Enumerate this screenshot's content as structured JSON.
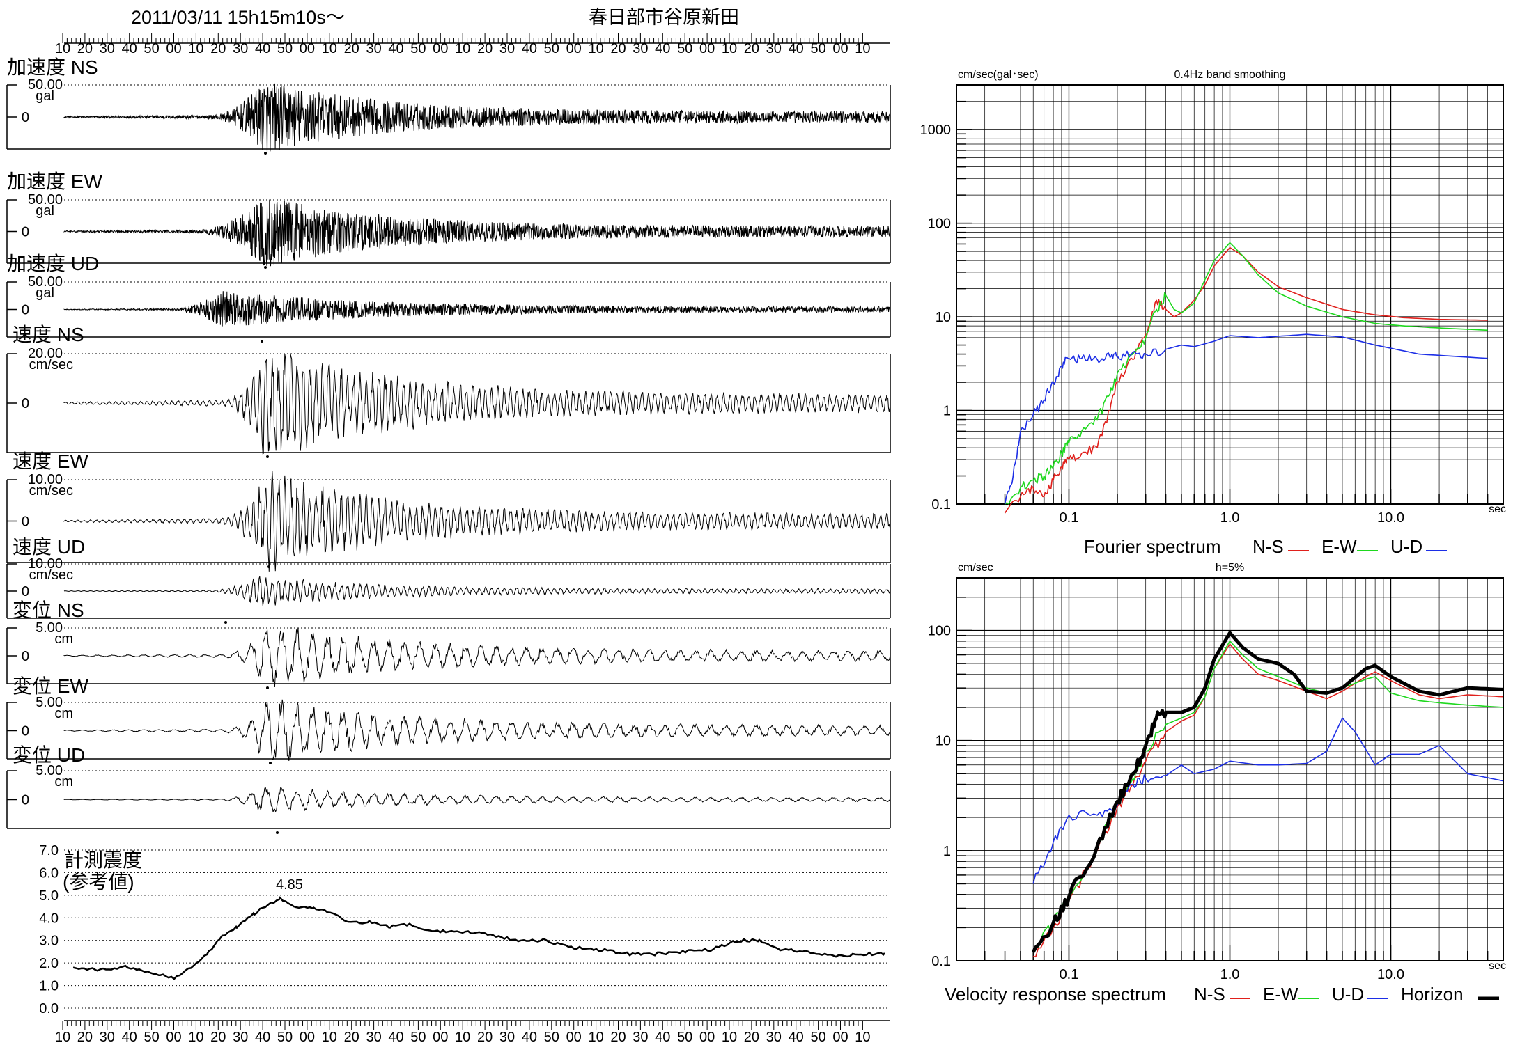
{
  "header": {
    "datetime": "2011/03/11  15h15m10s～",
    "location": "春日部市谷原新田"
  },
  "time_ticks": [
    "10",
    "20",
    "30",
    "40",
    "50",
    "00",
    "10",
    "20",
    "30",
    "40",
    "50",
    "00",
    "10",
    "20",
    "30",
    "40",
    "50",
    "00",
    "10",
    "20",
    "30",
    "40",
    "50",
    "00",
    "10",
    "20",
    "30",
    "40",
    "50",
    "00",
    "10",
    "20",
    "30",
    "40",
    "50",
    "00",
    "10"
  ],
  "waveforms": [
    {
      "label": "加速度 NS",
      "scale": "50.00",
      "unit": "gal",
      "zero": "0",
      "peak": 0.95
    },
    {
      "label": "加速度 EW",
      "scale": "50.00",
      "unit": "gal",
      "zero": "0",
      "peak": 0.92
    },
    {
      "label": "加速度 UD",
      "scale": "50.00",
      "unit": "gal",
      "zero": "0",
      "peak": 0.55
    },
    {
      "label": "速度 NS",
      "scale": "20.00",
      "unit": "cm/sec",
      "zero": "0",
      "peak": 0.95
    },
    {
      "label": "速度 EW",
      "scale": "10.00",
      "unit": "cm/sec",
      "zero": "0",
      "peak": 0.95
    },
    {
      "label": "速度 UD",
      "scale": "10.00",
      "unit": "cm/sec",
      "zero": "0",
      "peak": 0.45
    },
    {
      "label": "変位 NS",
      "scale": "5.00",
      "unit": "cm",
      "zero": "0",
      "peak": 0.92
    },
    {
      "label": "変位 EW",
      "scale": "5.00",
      "unit": "cm",
      "zero": "0",
      "peak": 0.92
    },
    {
      "label": "変位 UD",
      "scale": "5.00",
      "unit": "cm",
      "zero": "0",
      "peak": 0.35
    }
  ],
  "intensity": {
    "title_line1": "計測震度",
    "title_line2": "(参考値)",
    "max_label": "4.85",
    "yticks": [
      "7.0",
      "6.0",
      "5.0",
      "4.0",
      "3.0",
      "2.0",
      "1.0",
      "0.0"
    ]
  },
  "chart_data": [
    {
      "type": "line",
      "title": "Fourier spectrum",
      "subtitle": "0.4Hz band smoothing",
      "ylabel": "cm/sec(gal･sec)",
      "xlabel": "sec",
      "xscale": "log",
      "yscale": "log",
      "xlim": [
        0.02,
        50
      ],
      "ylim": [
        0.1,
        3000
      ],
      "xtick_labels": [
        "0.1",
        "1.0",
        "10.0"
      ],
      "ytick_labels": [
        "1000",
        "100",
        "10",
        "1",
        "0.1"
      ],
      "legend": "bottom",
      "series": [
        {
          "name": "N-S",
          "color": "#e0201c",
          "x": [
            0.04,
            0.05,
            0.06,
            0.07,
            0.08,
            0.09,
            0.1,
            0.12,
            0.15,
            0.18,
            0.2,
            0.25,
            0.3,
            0.35,
            0.4,
            0.45,
            0.5,
            0.6,
            0.7,
            0.8,
            1.0,
            1.2,
            1.5,
            2,
            3,
            5,
            8,
            12,
            20,
            40
          ],
          "y": [
            0.08,
            0.12,
            0.15,
            0.12,
            0.18,
            0.25,
            0.3,
            0.35,
            0.4,
            1.0,
            2.0,
            3.5,
            6.5,
            15,
            12,
            10,
            11,
            15,
            22,
            35,
            55,
            45,
            30,
            21,
            16,
            12,
            10.5,
            9.8,
            9.4,
            9.2
          ]
        },
        {
          "name": "E-W",
          "color": "#1ed81e",
          "x": [
            0.04,
            0.05,
            0.06,
            0.07,
            0.08,
            0.09,
            0.1,
            0.12,
            0.15,
            0.18,
            0.2,
            0.25,
            0.3,
            0.35,
            0.4,
            0.45,
            0.5,
            0.6,
            0.7,
            0.8,
            1.0,
            1.2,
            1.5,
            2,
            3,
            5,
            8,
            12,
            20,
            40
          ],
          "y": [
            0.1,
            0.15,
            0.18,
            0.2,
            0.25,
            0.35,
            0.45,
            0.6,
            0.8,
            1.5,
            2.5,
            4.0,
            6.0,
            12,
            17,
            12,
            11,
            14,
            25,
            40,
            62,
            45,
            28,
            18,
            13,
            10,
            8.5,
            8.0,
            7.6,
            7.2
          ]
        },
        {
          "name": "U-D",
          "color": "#1c2ee6",
          "x": [
            0.04,
            0.045,
            0.05,
            0.06,
            0.07,
            0.08,
            0.09,
            0.1,
            0.12,
            0.15,
            0.18,
            0.2,
            0.25,
            0.3,
            0.4,
            0.5,
            0.6,
            0.8,
            1.0,
            1.5,
            2,
            3,
            5,
            8,
            15,
            40
          ],
          "y": [
            0.1,
            0.2,
            0.6,
            0.9,
            1.3,
            2.0,
            3.0,
            3.6,
            3.6,
            3.5,
            3.7,
            3.8,
            4.2,
            4.0,
            4.5,
            5.0,
            4.8,
            5.5,
            6.3,
            6.0,
            6.2,
            6.5,
            6.1,
            5.0,
            4.0,
            3.6
          ]
        }
      ]
    },
    {
      "type": "line",
      "title": "Velocity response spectrum",
      "subtitle": "h=5%",
      "ylabel": "cm/sec",
      "xlabel": "sec",
      "xscale": "log",
      "yscale": "log",
      "xlim": [
        0.02,
        50
      ],
      "ylim": [
        0.1,
        300
      ],
      "xtick_labels": [
        "0.1",
        "1.0",
        "10.0"
      ],
      "ytick_labels": [
        "100",
        "10",
        "1",
        "0.1"
      ],
      "legend": "bottom",
      "series": [
        {
          "name": "N-S",
          "color": "#e0201c",
          "x": [
            0.06,
            0.08,
            0.1,
            0.15,
            0.2,
            0.25,
            0.3,
            0.4,
            0.5,
            0.6,
            0.7,
            0.8,
            1.0,
            1.2,
            1.5,
            2,
            3,
            4,
            5,
            7,
            8,
            10,
            15,
            20,
            30,
            50
          ],
          "y": [
            0.11,
            0.2,
            0.35,
            1.0,
            2.5,
            4.0,
            6.5,
            12,
            15,
            17,
            25,
            45,
            75,
            55,
            40,
            35,
            28,
            24,
            28,
            38,
            42,
            35,
            26,
            24,
            26,
            25
          ]
        },
        {
          "name": "E-W",
          "color": "#1ed81e",
          "x": [
            0.06,
            0.08,
            0.1,
            0.15,
            0.2,
            0.25,
            0.3,
            0.4,
            0.5,
            0.6,
            0.7,
            0.8,
            1.0,
            1.2,
            1.5,
            2,
            3,
            4,
            5,
            7,
            8,
            10,
            15,
            20,
            30,
            50
          ],
          "y": [
            0.12,
            0.22,
            0.38,
            1.1,
            2.8,
            4.5,
            8.0,
            14,
            16,
            18,
            25,
            45,
            80,
            60,
            45,
            38,
            30,
            27,
            30,
            36,
            38,
            27,
            23,
            22,
            21,
            20
          ]
        },
        {
          "name": "U-D",
          "color": "#1c2ee6",
          "x": [
            0.06,
            0.08,
            0.1,
            0.15,
            0.2,
            0.25,
            0.3,
            0.4,
            0.5,
            0.6,
            0.8,
            1.0,
            1.5,
            2,
            3,
            4,
            5,
            6,
            8,
            10,
            15,
            20,
            30,
            50
          ],
          "y": [
            0.5,
            1.2,
            2.1,
            2.1,
            2.6,
            4.0,
            4.5,
            4.8,
            6.0,
            5.0,
            5.5,
            6.5,
            6.0,
            6.0,
            6.2,
            8.0,
            16,
            12,
            6.0,
            7.5,
            7.5,
            9.0,
            5.0,
            4.3
          ]
        },
        {
          "name": "Horizon",
          "color": "#000000",
          "x": [
            0.06,
            0.08,
            0.1,
            0.15,
            0.2,
            0.25,
            0.3,
            0.35,
            0.4,
            0.5,
            0.6,
            0.7,
            0.8,
            1.0,
            1.2,
            1.5,
            2,
            2.5,
            3,
            4,
            5,
            7,
            8,
            10,
            15,
            20,
            30,
            50
          ],
          "y": [
            0.12,
            0.22,
            0.38,
            1.1,
            2.8,
            5.0,
            9.0,
            16,
            18,
            18,
            20,
            30,
            55,
            95,
            70,
            55,
            50,
            40,
            28,
            27,
            30,
            45,
            48,
            38,
            28,
            26,
            30,
            29
          ]
        }
      ]
    }
  ]
}
